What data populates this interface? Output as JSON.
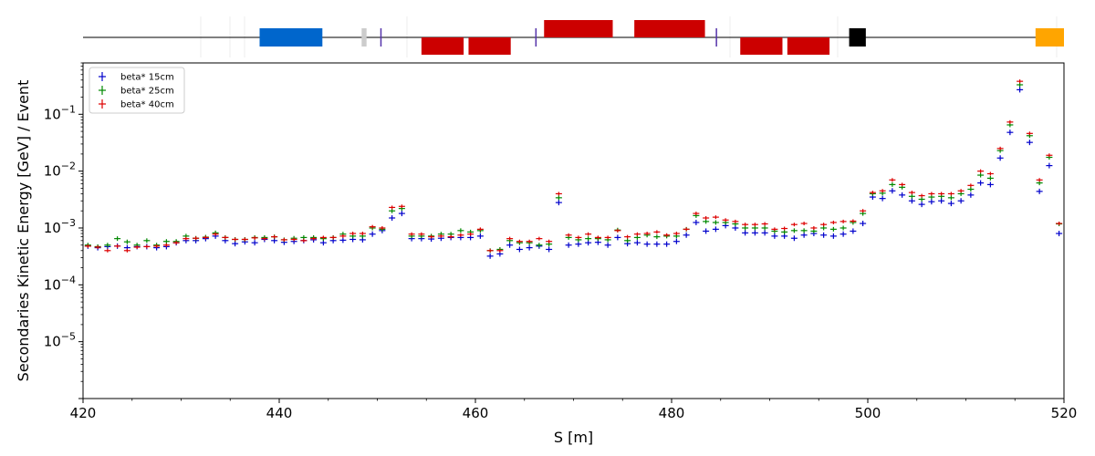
{
  "chart_data": {
    "type": "scatter",
    "title": "",
    "xlabel": "S [m]",
    "ylabel": "Secondaries Kinetic Energy [GeV] / Event",
    "xlim": [
      420,
      520
    ],
    "ylim": [
      1e-06,
      0.8
    ],
    "yscale": "log",
    "grid": false,
    "legend": "top-left",
    "x_ticks": [
      420,
      440,
      460,
      480,
      500,
      520
    ],
    "x_tick_labels": [
      "420",
      "440",
      "460",
      "480",
      "500",
      "520"
    ],
    "y_ticks": [
      1e-05,
      0.0001,
      0.001,
      0.01,
      0.1
    ],
    "y_tick_labels": [
      {
        "base": "10",
        "exp": "−5"
      },
      {
        "base": "10",
        "exp": "−4"
      },
      {
        "base": "10",
        "exp": "−3"
      },
      {
        "base": "10",
        "exp": "−2"
      },
      {
        "base": "10",
        "exp": "−1"
      }
    ],
    "x": [
      420.5,
      421.5,
      422.5,
      423.5,
      424.5,
      425.5,
      426.5,
      427.5,
      428.5,
      429.5,
      430.5,
      431.5,
      432.5,
      433.5,
      434.5,
      435.5,
      436.5,
      437.5,
      438.5,
      439.5,
      440.5,
      441.5,
      442.5,
      443.5,
      444.5,
      445.5,
      446.5,
      447.5,
      448.5,
      449.5,
      450.5,
      451.5,
      452.5,
      453.5,
      454.5,
      455.5,
      456.5,
      457.5,
      458.5,
      459.5,
      460.5,
      461.5,
      462.5,
      463.5,
      464.5,
      465.5,
      466.5,
      467.5,
      468.5,
      469.5,
      470.5,
      471.5,
      472.5,
      473.5,
      474.5,
      475.5,
      476.5,
      477.5,
      478.5,
      479.5,
      480.5,
      481.5,
      482.5,
      483.5,
      484.5,
      485.5,
      486.5,
      487.5,
      488.5,
      489.5,
      490.5,
      491.5,
      492.5,
      493.5,
      494.5,
      495.5,
      496.5,
      497.5,
      498.5,
      499.5,
      500.5,
      501.5,
      502.5,
      503.5,
      504.5,
      505.5,
      506.5,
      507.5,
      508.5,
      509.5,
      510.5,
      511.5,
      512.5,
      513.5,
      514.5,
      515.5,
      516.5,
      517.5,
      518.5,
      519.5
    ],
    "series": [
      {
        "name": "beta* 15cm",
        "color": "#0000cc",
        "values": [
          0.00048,
          0.00045,
          0.00047,
          0.00048,
          0.00045,
          0.00047,
          0.00047,
          0.00045,
          0.00047,
          0.00055,
          0.0006,
          0.0006,
          0.00065,
          0.00072,
          0.0006,
          0.00053,
          0.00057,
          0.00055,
          0.00063,
          0.0006,
          0.00056,
          0.00058,
          0.0006,
          0.00062,
          0.00055,
          0.0006,
          0.00061,
          0.00063,
          0.00062,
          0.00078,
          0.0009,
          0.0015,
          0.0018,
          0.00065,
          0.00065,
          0.00064,
          0.00066,
          0.00068,
          0.00068,
          0.00068,
          0.00072,
          0.00032,
          0.00035,
          0.0005,
          0.00042,
          0.00045,
          0.00048,
          0.00042,
          0.0028,
          0.0005,
          0.00052,
          0.00055,
          0.00056,
          0.0005,
          0.00068,
          0.00053,
          0.00055,
          0.00052,
          0.00052,
          0.00052,
          0.00058,
          0.00075,
          0.00125,
          0.00088,
          0.00095,
          0.0011,
          0.001,
          0.00082,
          0.00082,
          0.00082,
          0.00072,
          0.00072,
          0.00066,
          0.00075,
          0.0008,
          0.00075,
          0.00072,
          0.00078,
          0.00088,
          0.0012,
          0.0035,
          0.0033,
          0.0045,
          0.0038,
          0.003,
          0.0026,
          0.0029,
          0.003,
          0.0027,
          0.003,
          0.0038,
          0.0062,
          0.0058,
          0.017,
          0.048,
          0.27,
          0.032,
          0.0044,
          0.0125,
          0.0008
        ]
      },
      {
        "name": "beta* 25cm",
        "color": "#008800",
        "values": [
          0.0005,
          0.00047,
          0.0005,
          0.00065,
          0.00057,
          0.0005,
          0.0006,
          0.0005,
          0.00058,
          0.00058,
          0.00072,
          0.00066,
          0.00069,
          0.00082,
          0.00068,
          0.00063,
          0.00063,
          0.00068,
          0.00068,
          0.0007,
          0.00062,
          0.00066,
          0.00068,
          0.00068,
          0.00065,
          0.00068,
          0.00078,
          0.00072,
          0.00072,
          0.001,
          0.00095,
          0.002,
          0.0022,
          0.00072,
          0.00072,
          0.00072,
          0.00078,
          0.00078,
          0.0009,
          0.00085,
          0.0009,
          0.0004,
          0.00042,
          0.0006,
          0.00055,
          0.00055,
          0.0005,
          0.00052,
          0.0034,
          0.00068,
          0.00062,
          0.00065,
          0.00065,
          0.00062,
          0.00092,
          0.0006,
          0.00068,
          0.00075,
          0.0007,
          0.00072,
          0.00072,
          0.00095,
          0.00165,
          0.0013,
          0.00125,
          0.00125,
          0.00118,
          0.001,
          0.001,
          0.001,
          0.00088,
          0.00085,
          0.0009,
          0.0009,
          0.00088,
          0.001,
          0.00095,
          0.001,
          0.00125,
          0.0018,
          0.004,
          0.0041,
          0.0058,
          0.0052,
          0.0036,
          0.0032,
          0.0035,
          0.0036,
          0.0034,
          0.004,
          0.0048,
          0.0085,
          0.0075,
          0.023,
          0.065,
          0.33,
          0.042,
          0.0062,
          0.0175,
          0.00118
        ]
      },
      {
        "name": "beta* 40cm",
        "color": "#dd0000",
        "values": [
          0.00048,
          0.00046,
          0.0004,
          0.00048,
          0.0004,
          0.00046,
          0.00047,
          0.00048,
          0.0005,
          0.00055,
          0.00065,
          0.00066,
          0.00068,
          0.00078,
          0.00068,
          0.00063,
          0.00063,
          0.00067,
          0.00065,
          0.0007,
          0.00062,
          0.00063,
          0.0006,
          0.00065,
          0.00068,
          0.00068,
          0.00072,
          0.0008,
          0.0008,
          0.00105,
          0.001,
          0.0023,
          0.0024,
          0.00078,
          0.00078,
          0.0007,
          0.00072,
          0.0007,
          0.00075,
          0.00078,
          0.00095,
          0.0004,
          0.0004,
          0.00065,
          0.00058,
          0.00058,
          0.00065,
          0.00058,
          0.004,
          0.00075,
          0.00068,
          0.00078,
          0.00068,
          0.00068,
          0.0009,
          0.0007,
          0.00078,
          0.0008,
          0.00085,
          0.00075,
          0.0008,
          0.00095,
          0.0018,
          0.0015,
          0.00155,
          0.00138,
          0.0013,
          0.00115,
          0.00115,
          0.00118,
          0.00095,
          0.00098,
          0.00115,
          0.0012,
          0.001,
          0.00115,
          0.00125,
          0.0013,
          0.00132,
          0.002,
          0.0042,
          0.0045,
          0.007,
          0.0058,
          0.0042,
          0.0037,
          0.004,
          0.004,
          0.004,
          0.0045,
          0.0056,
          0.01,
          0.009,
          0.025,
          0.073,
          0.38,
          0.046,
          0.007,
          0.019,
          0.0012
        ]
      }
    ]
  },
  "beamline": {
    "elements": [
      {
        "s0": 438.0,
        "s1": 444.4,
        "side": "center",
        "color": "#0066cc"
      },
      {
        "s0": 448.4,
        "s1": 448.9,
        "side": "center",
        "color": "#cccccc"
      },
      {
        "s0": 450.3,
        "s1": 450.5,
        "side": "line",
        "color": "#5533aa"
      },
      {
        "s0": 454.5,
        "s1": 458.8,
        "side": "below",
        "color": "#cc0000"
      },
      {
        "s0": 459.3,
        "s1": 463.6,
        "side": "below",
        "color": "#cc0000"
      },
      {
        "s0": 466.1,
        "s1": 466.3,
        "side": "line",
        "color": "#5533aa"
      },
      {
        "s0": 467.0,
        "s1": 474.0,
        "side": "above",
        "color": "#cc0000"
      },
      {
        "s0": 476.2,
        "s1": 483.4,
        "side": "above",
        "color": "#cc0000"
      },
      {
        "s0": 484.5,
        "s1": 484.7,
        "side": "line",
        "color": "#5533aa"
      },
      {
        "s0": 487.0,
        "s1": 491.3,
        "side": "below",
        "color": "#cc0000"
      },
      {
        "s0": 491.8,
        "s1": 496.1,
        "side": "below",
        "color": "#cc0000"
      },
      {
        "s0": 498.1,
        "s1": 499.8,
        "side": "center",
        "color": "#000000"
      },
      {
        "s0": 517.1,
        "s1": 520.0,
        "side": "center",
        "color": "#ffa500"
      }
    ]
  }
}
